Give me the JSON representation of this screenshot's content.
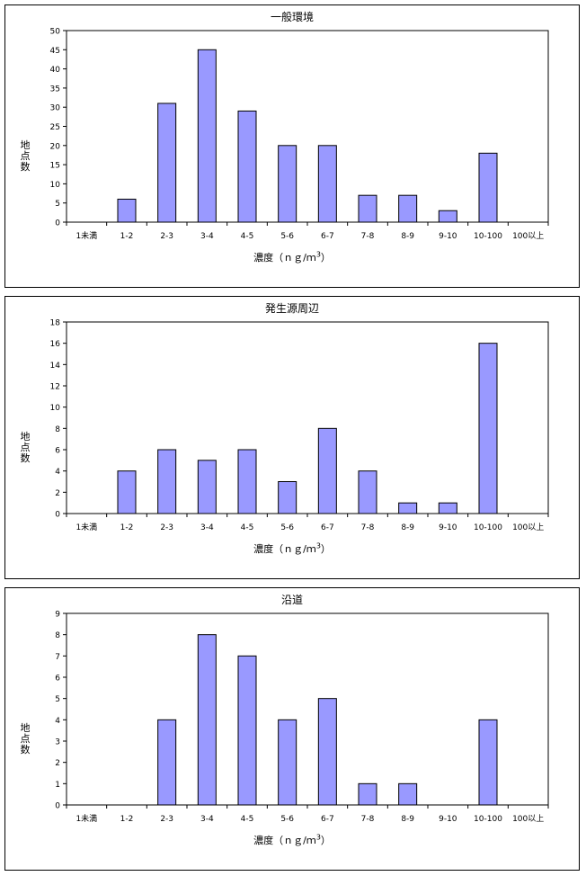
{
  "chart_data": [
    {
      "type": "bar",
      "title": "一般環境",
      "xlabel": "濃度（ｎｇ/ｍ",
      "xlabel_sup": "3",
      "xlabel_close": "）",
      "ylabel": "地点数",
      "categories": [
        "1未満",
        "1-2",
        "2-3",
        "3-4",
        "4-5",
        "5-6",
        "6-7",
        "7-8",
        "8-9",
        "9-10",
        "10-100",
        "100以上"
      ],
      "values": [
        0,
        6,
        31,
        45,
        29,
        20,
        20,
        7,
        7,
        3,
        18,
        0
      ],
      "ylim": [
        0,
        50
      ],
      "yticks": [
        0,
        5,
        10,
        15,
        20,
        25,
        30,
        35,
        40,
        45,
        50
      ],
      "grid": false,
      "bar_color": "#9999ff"
    },
    {
      "type": "bar",
      "title": "発生源周辺",
      "xlabel": "濃度（ｎｇ/ｍ",
      "xlabel_sup": "3",
      "xlabel_close": "）",
      "ylabel": "地点数",
      "categories": [
        "1未満",
        "1-2",
        "2-3",
        "3-4",
        "4-5",
        "5-6",
        "6-7",
        "7-8",
        "8-9",
        "9-10",
        "10-100",
        "100以上"
      ],
      "values": [
        0,
        4,
        6,
        5,
        6,
        3,
        8,
        4,
        1,
        1,
        16,
        0
      ],
      "ylim": [
        0,
        18
      ],
      "yticks": [
        0,
        2,
        4,
        6,
        8,
        10,
        12,
        14,
        16,
        18
      ],
      "grid": false,
      "bar_color": "#9999ff"
    },
    {
      "type": "bar",
      "title": "沿道",
      "xlabel": "濃度（ｎｇ/ｍ",
      "xlabel_sup": "3",
      "xlabel_close": "）",
      "ylabel": "地点数",
      "categories": [
        "1未満",
        "1-2",
        "2-3",
        "3-4",
        "4-5",
        "5-6",
        "6-7",
        "7-8",
        "8-9",
        "9-10",
        "10-100",
        "100以上"
      ],
      "values": [
        0,
        0,
        4,
        8,
        7,
        4,
        5,
        1,
        1,
        0,
        4,
        0
      ],
      "ylim": [
        0,
        9
      ],
      "yticks": [
        0,
        1,
        2,
        3,
        4,
        5,
        6,
        7,
        8,
        9
      ],
      "grid": false,
      "bar_color": "#9999ff"
    }
  ]
}
